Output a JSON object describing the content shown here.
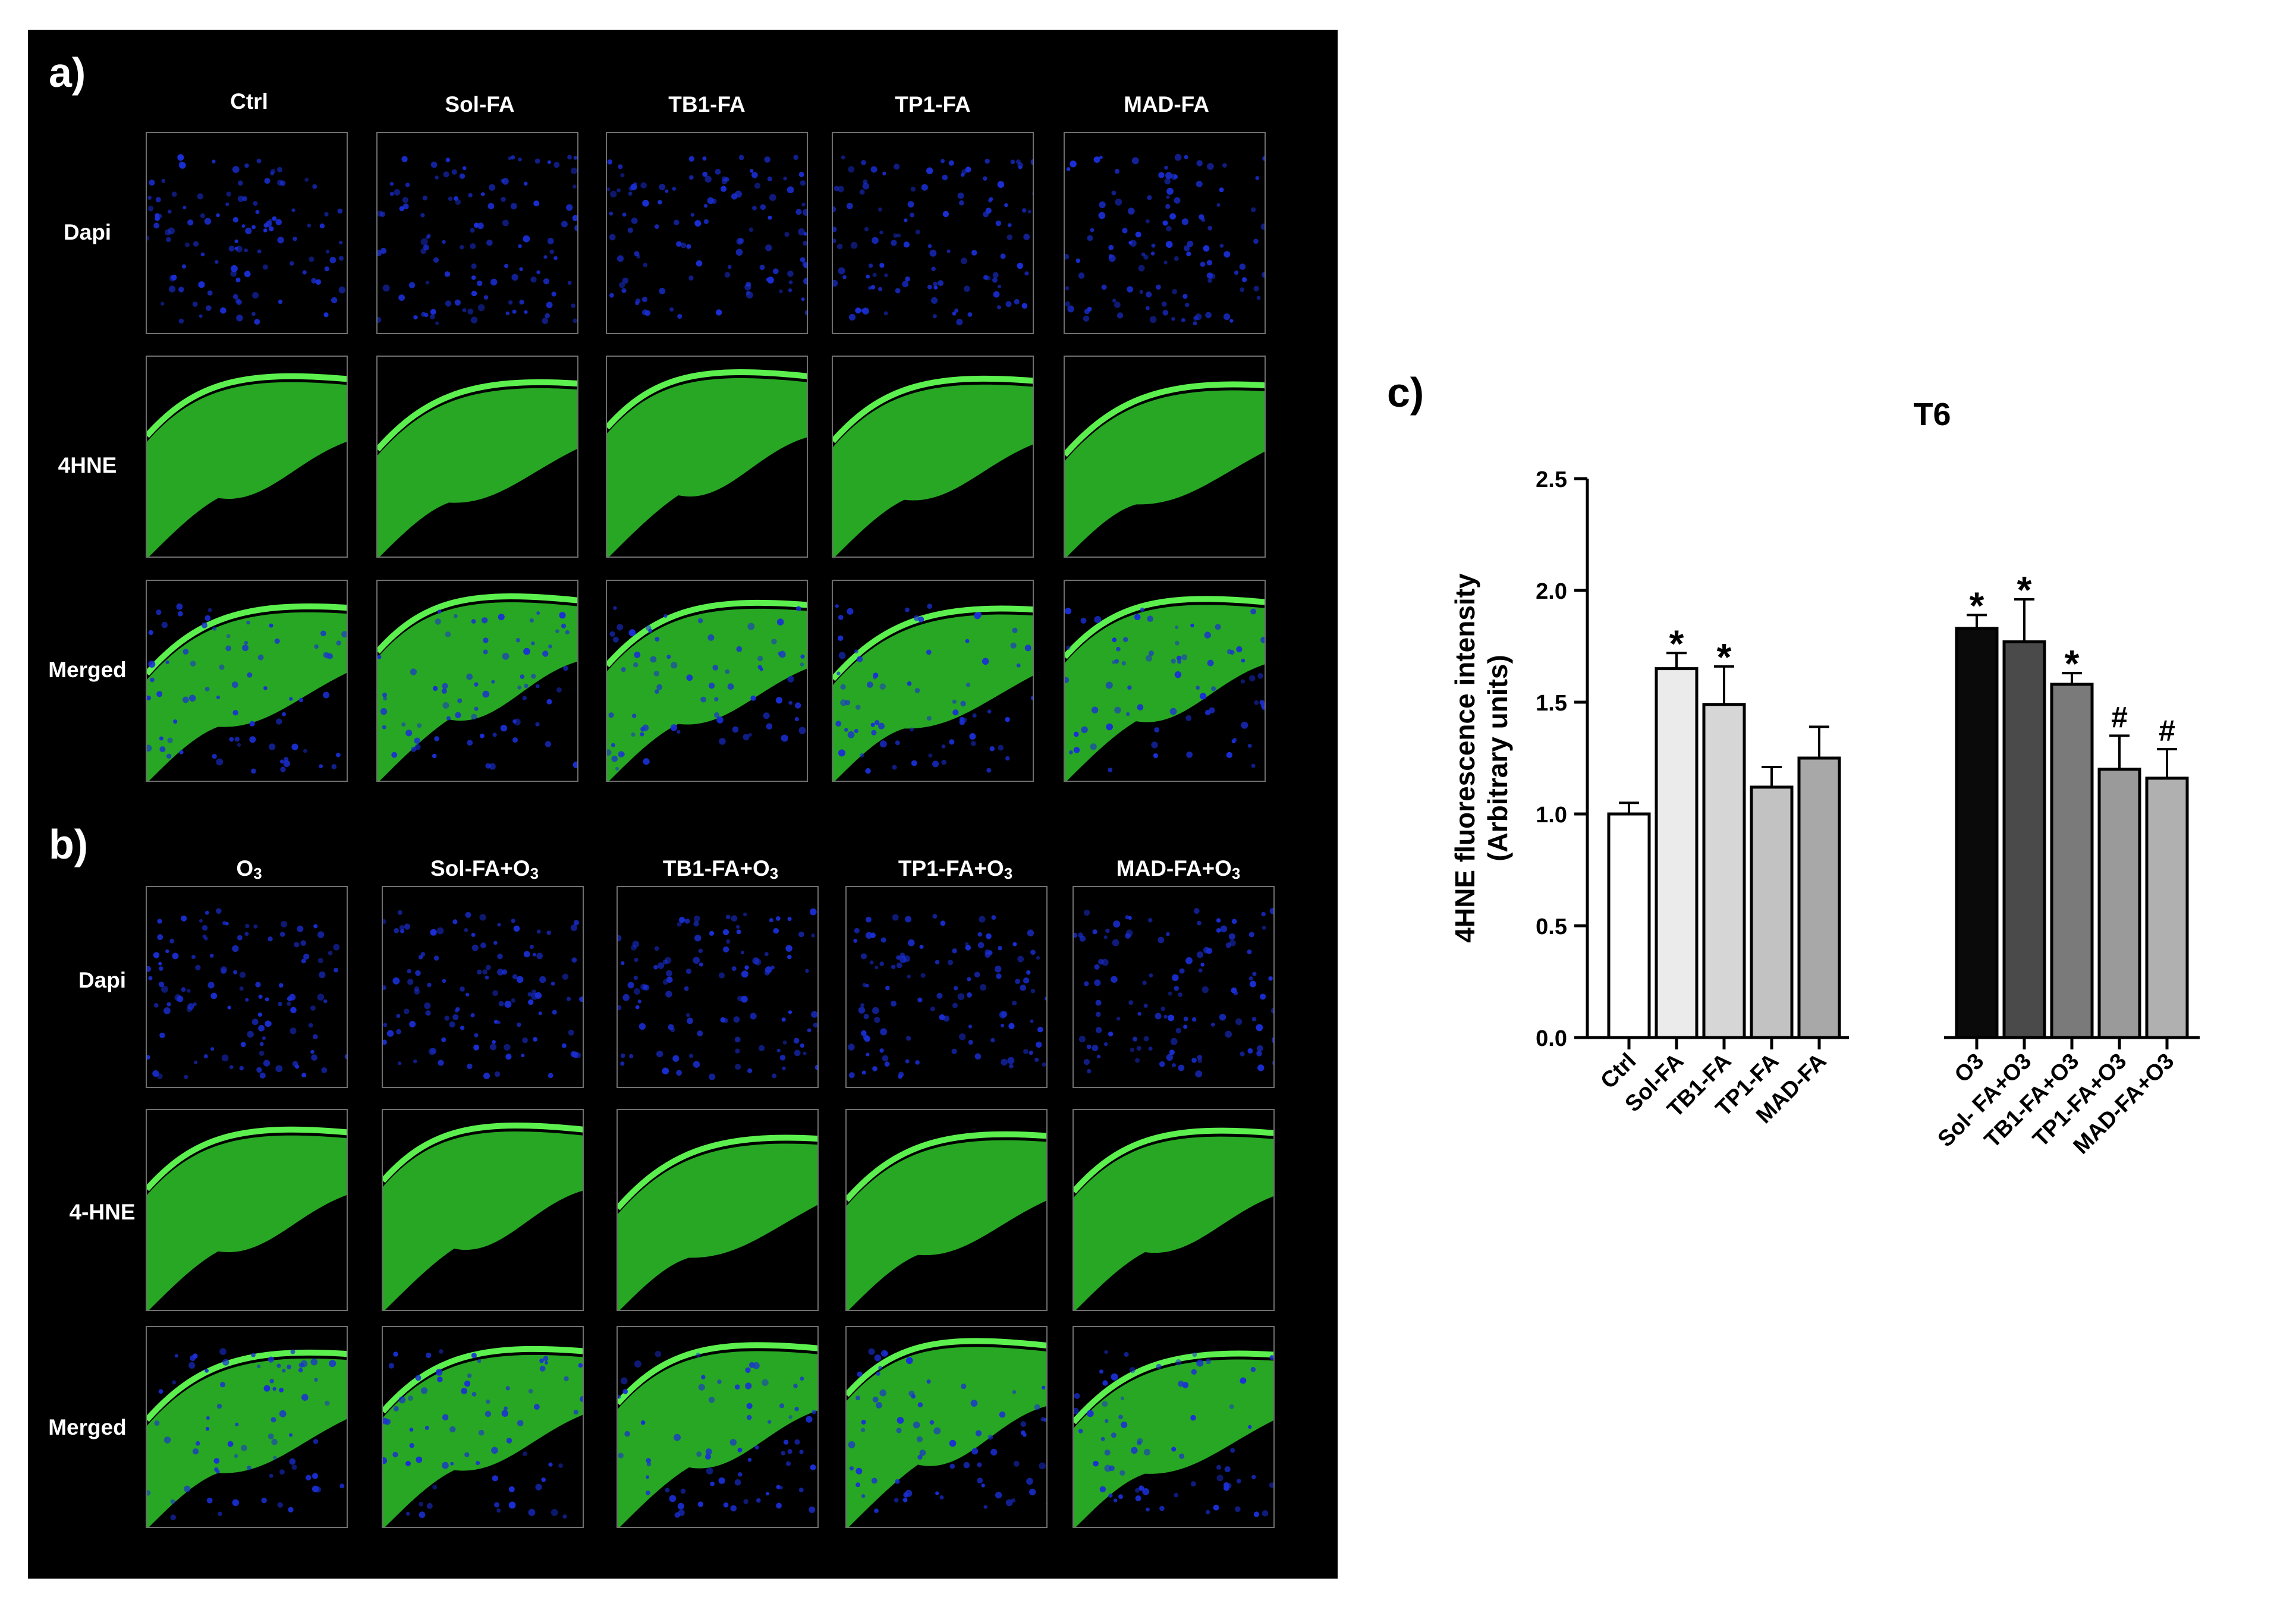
{
  "panel_a": {
    "letter": "a)",
    "columns": [
      "Ctrl",
      "Sol-FA",
      "TB1-FA",
      "TP1-FA",
      "MAD-FA"
    ],
    "rows": [
      "Dapi",
      "4HNE",
      "Merged"
    ]
  },
  "panel_b": {
    "letter": "b)",
    "columns": [
      {
        "base": "O",
        "sub": "3"
      },
      {
        "base": "Sol-FA+O",
        "sub": "3"
      },
      {
        "base": "TB1-FA+O",
        "sub": "3"
      },
      {
        "base": "TP1-FA+O",
        "sub": "3"
      },
      {
        "base": "MAD-FA+O",
        "sub": "3"
      }
    ],
    "rows": [
      "Dapi",
      "4-HNE",
      "Merged"
    ]
  },
  "panel_c": {
    "letter": "c)"
  },
  "colors": {
    "dapi": "#1a2fd6",
    "hne": "#2fc42a",
    "background": "#000000"
  },
  "chart_data": {
    "type": "bar",
    "title": "T6",
    "ylabel_line1": "4HNE fluorescence intensity",
    "ylabel_line2": "(Arbitrary units)",
    "ylim": [
      0,
      2.5
    ],
    "yticks": [
      "0.0",
      "0.5",
      "1.0",
      "1.5",
      "2.0",
      "2.5"
    ],
    "categories": [
      "Ctrl",
      "Sol-FA",
      "TB1-FA",
      "TP1-FA",
      "MAD-FA",
      "O3",
      "Sol- FA+O3",
      "TB1-FA+O3",
      "TP1-FA+O3",
      "MAD-FA+O3"
    ],
    "values": [
      1.0,
      1.65,
      1.49,
      1.12,
      1.25,
      1.83,
      1.77,
      1.58,
      1.2,
      1.16
    ],
    "errors": [
      0.05,
      0.07,
      0.17,
      0.09,
      0.14,
      0.06,
      0.19,
      0.05,
      0.15,
      0.13
    ],
    "bar_colors": [
      "#ffffff",
      "#ebebeb",
      "#d6d6d6",
      "#c2c2c2",
      "#a8a8a8",
      "#0a0a0a",
      "#4a4a4a",
      "#7a7a7a",
      "#9a9a9a",
      "#b0b0b0"
    ],
    "annotations": [
      "",
      "*",
      "*",
      "",
      "",
      "*",
      "*",
      "*",
      "#",
      "#"
    ],
    "grid": false
  }
}
